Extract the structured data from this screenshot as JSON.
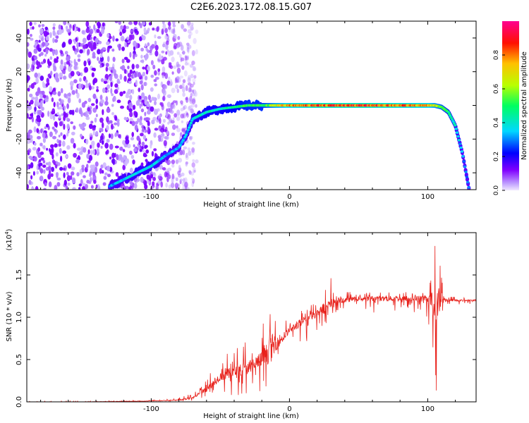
{
  "title": "C2E6.2023.172.08.15.G07",
  "chart_data": [
    {
      "type": "heatmap",
      "xlabel": "Height of straight line (km)",
      "ylabel": "Frequency (Hz)",
      "xlim": [
        -190,
        135
      ],
      "ylim": [
        -50,
        50
      ],
      "xticks": [
        -100,
        0,
        100
      ],
      "yticks": [
        -40,
        -20,
        0,
        20,
        40
      ],
      "colorbar": {
        "label": "Normalized spectral amplitude",
        "range": [
          0.0,
          1.0
        ],
        "ticks": [
          0.0,
          0.2,
          0.4,
          0.6,
          0.8
        ],
        "colormap": [
          "#e8d8ff",
          "#8000ff",
          "#0000ff",
          "#00d8ff",
          "#00ff40",
          "#c0ff00",
          "#ffb000",
          "#ff0000",
          "#ff0090"
        ]
      },
      "ridge": {
        "x": [
          -130,
          -110,
          -100,
          -90,
          -80,
          -75,
          -70,
          -60,
          -50,
          -40,
          -30,
          -20,
          -10,
          0,
          20,
          40,
          60,
          80,
          100,
          105,
          110,
          115,
          120,
          125,
          130
        ],
        "freq": [
          -48,
          -40,
          -36,
          -30,
          -25,
          -18,
          -8,
          -4,
          -2,
          -1,
          0,
          0,
          0,
          0,
          0,
          0,
          0,
          0,
          0,
          0,
          -1,
          -4,
          -12,
          -28,
          -50
        ],
        "amplitude": [
          0.35,
          0.4,
          0.4,
          0.35,
          0.35,
          0.35,
          0.4,
          0.45,
          0.45,
          0.5,
          0.55,
          0.55,
          0.7,
          0.8,
          0.9,
          0.9,
          0.9,
          0.85,
          0.8,
          0.7,
          0.6,
          0.5,
          0.4,
          0.35,
          0.3
        ]
      },
      "noise_region": [
        -190,
        -75
      ]
    },
    {
      "type": "line",
      "xlabel": "Height of straight line (km)",
      "ylabel": "SNR (10 * v/v)",
      "scale_note": "(x10",
      "scale_exp": "4",
      "scale_close": ")",
      "xlim": [
        -190,
        135
      ],
      "ylim": [
        0,
        2.0
      ],
      "xticks": [
        -100,
        0,
        100
      ],
      "yticks": [
        0.0,
        0.5,
        1.0,
        1.5
      ],
      "color": "#e8211b",
      "series": {
        "x": [
          -190,
          -150,
          -100,
          -80,
          -70,
          -60,
          -50,
          -40,
          -30,
          -20,
          -12,
          -10,
          -5,
          0,
          10,
          20,
          30,
          35,
          40,
          50,
          60,
          70,
          80,
          90,
          100,
          103,
          105,
          106,
          108,
          110,
          112,
          115,
          120,
          130,
          135
        ],
        "y": [
          0.0,
          0.0,
          0.01,
          0.02,
          0.05,
          0.15,
          0.3,
          0.35,
          0.4,
          0.5,
          0.65,
          0.7,
          0.75,
          0.85,
          0.95,
          1.05,
          1.15,
          1.2,
          1.2,
          1.22,
          1.22,
          1.22,
          1.22,
          1.22,
          1.22,
          1.2,
          1.1,
          1.0,
          1.2,
          1.25,
          1.2,
          1.2,
          1.2,
          1.2,
          1.2
        ],
        "upper": [
          0.01,
          0.01,
          0.02,
          0.05,
          0.1,
          0.3,
          0.5,
          0.65,
          0.75,
          0.9,
          1.4,
          1.2,
          1.0,
          0.95,
          1.1,
          1.2,
          1.48,
          1.3,
          1.3,
          1.3,
          1.3,
          1.3,
          1.3,
          1.32,
          1.3,
          1.5,
          1.95,
          1.6,
          1.85,
          1.6,
          1.3,
          1.25,
          1.25,
          1.22,
          1.22
        ],
        "lower": [
          0.0,
          0.0,
          0.0,
          0.0,
          0.0,
          0.05,
          0.1,
          0.05,
          0.1,
          0.1,
          0.1,
          0.4,
          0.6,
          0.65,
          0.65,
          0.85,
          0.9,
          1.05,
          1.05,
          1.08,
          1.05,
          1.05,
          1.05,
          1.05,
          1.0,
          0.6,
          0.1,
          0.05,
          0.6,
          0.9,
          1.1,
          1.15,
          1.15,
          1.15,
          1.15
        ]
      }
    }
  ]
}
